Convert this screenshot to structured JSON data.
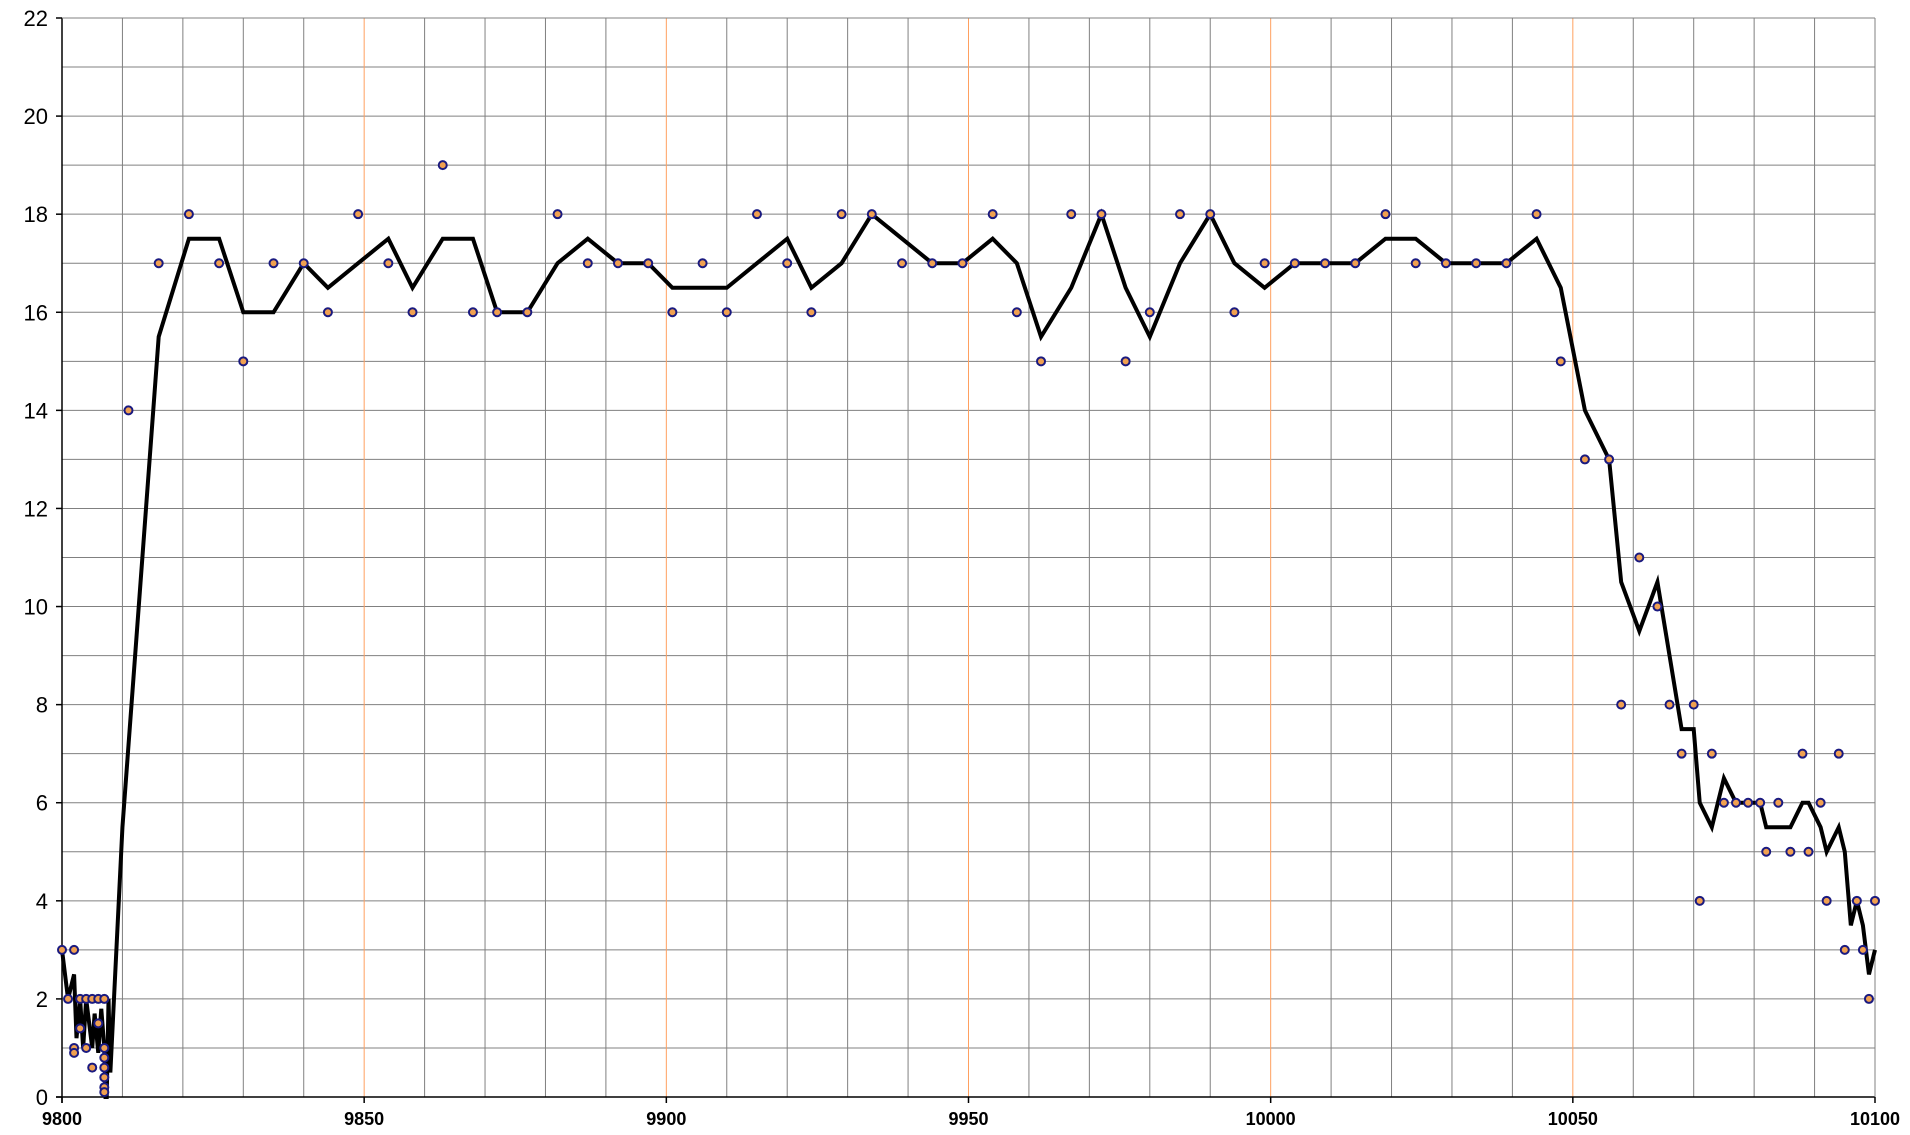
{
  "chart_data": {
    "type": "line",
    "title": "",
    "xlabel": "",
    "ylabel": "",
    "xlim": [
      9800,
      10100
    ],
    "ylim": [
      0,
      22
    ],
    "x_ticks": [
      9800,
      9850,
      9900,
      9950,
      10000,
      10050,
      10100
    ],
    "y_ticks": [
      0,
      2,
      4,
      6,
      8,
      10,
      12,
      14,
      16,
      18,
      20,
      22
    ],
    "x_minor_step": 10,
    "y_minor_step": 1,
    "grid": true,
    "legend": "none",
    "colors": {
      "background": "#ffffff",
      "grid": "#808080",
      "grid_major_x": "#ffa060",
      "axis": "#000000",
      "line": "#000000",
      "marker_fill": "#f0a050",
      "marker_edge": "#1a1a80"
    },
    "series": [
      {
        "kind": "scatter",
        "points": [
          [
            9800,
            3
          ],
          [
            9801,
            2
          ],
          [
            9802,
            3
          ],
          [
            9802,
            1
          ],
          [
            9802,
            0.9
          ],
          [
            9803,
            1.4
          ],
          [
            9803,
            2
          ],
          [
            9804,
            2
          ],
          [
            9804,
            1
          ],
          [
            9805,
            2
          ],
          [
            9805,
            0.6
          ],
          [
            9806,
            2
          ],
          [
            9806,
            1.5
          ],
          [
            9807,
            2
          ],
          [
            9807,
            1
          ],
          [
            9807,
            0.8
          ],
          [
            9807,
            0.6
          ],
          [
            9807,
            0.4
          ],
          [
            9807,
            0.2
          ],
          [
            9807,
            0.1
          ],
          [
            9811,
            14
          ],
          [
            9816,
            17
          ],
          [
            9821,
            18
          ],
          [
            9826,
            17
          ],
          [
            9830,
            15
          ],
          [
            9835,
            17
          ],
          [
            9840,
            17
          ],
          [
            9844,
            16
          ],
          [
            9849,
            18
          ],
          [
            9854,
            17
          ],
          [
            9858,
            16
          ],
          [
            9863,
            19
          ],
          [
            9868,
            16
          ],
          [
            9872,
            16
          ],
          [
            9877,
            16
          ],
          [
            9882,
            18
          ],
          [
            9887,
            17
          ],
          [
            9892,
            17
          ],
          [
            9897,
            17
          ],
          [
            9901,
            16
          ],
          [
            9906,
            17
          ],
          [
            9910,
            16
          ],
          [
            9915,
            18
          ],
          [
            9920,
            17
          ],
          [
            9924,
            16
          ],
          [
            9929,
            18
          ],
          [
            9934,
            18
          ],
          [
            9939,
            17
          ],
          [
            9944,
            17
          ],
          [
            9949,
            17
          ],
          [
            9954,
            18
          ],
          [
            9958,
            16
          ],
          [
            9962,
            15
          ],
          [
            9967,
            18
          ],
          [
            9972,
            18
          ],
          [
            9976,
            15
          ],
          [
            9980,
            16
          ],
          [
            9985,
            18
          ],
          [
            9990,
            18
          ],
          [
            9994,
            16
          ],
          [
            9999,
            17
          ],
          [
            10004,
            17
          ],
          [
            10009,
            17
          ],
          [
            10014,
            17
          ],
          [
            10019,
            18
          ],
          [
            10024,
            17
          ],
          [
            10029,
            17
          ],
          [
            10034,
            17
          ],
          [
            10039,
            17
          ],
          [
            10044,
            18
          ],
          [
            10048,
            15
          ],
          [
            10052,
            13
          ],
          [
            10056,
            13
          ],
          [
            10058,
            8
          ],
          [
            10061,
            11
          ],
          [
            10064,
            10
          ],
          [
            10066,
            8
          ],
          [
            10068,
            7
          ],
          [
            10070,
            8
          ],
          [
            10071,
            4
          ],
          [
            10073,
            7
          ],
          [
            10075,
            6
          ],
          [
            10077,
            6
          ],
          [
            10079,
            6
          ],
          [
            10081,
            6
          ],
          [
            10082,
            5
          ],
          [
            10084,
            6
          ],
          [
            10086,
            5
          ],
          [
            10088,
            7
          ],
          [
            10089,
            5
          ],
          [
            10091,
            6
          ],
          [
            10092,
            4
          ],
          [
            10094,
            7
          ],
          [
            10095,
            3
          ],
          [
            10097,
            4
          ],
          [
            10098,
            3
          ],
          [
            10099,
            2
          ],
          [
            10100,
            4
          ]
        ]
      },
      {
        "kind": "line",
        "points": [
          [
            9800,
            3
          ],
          [
            9801,
            2
          ],
          [
            9802,
            2.5
          ],
          [
            9802.4,
            1.2
          ],
          [
            9803,
            2
          ],
          [
            9803.5,
            1
          ],
          [
            9804,
            2
          ],
          [
            9805,
            1
          ],
          [
            9805.4,
            1.7
          ],
          [
            9806,
            0.9
          ],
          [
            9806.5,
            1.8
          ],
          [
            9807,
            1
          ],
          [
            9807.2,
            0
          ],
          [
            9807.4,
            0
          ],
          [
            9807.7,
            2
          ],
          [
            9808,
            0.5
          ],
          [
            9810,
            5.5
          ],
          [
            9816,
            15.5
          ],
          [
            9821,
            17.5
          ],
          [
            9826,
            17.5
          ],
          [
            9830,
            16
          ],
          [
            9835,
            16
          ],
          [
            9840,
            17
          ],
          [
            9844,
            16.5
          ],
          [
            9849,
            17
          ],
          [
            9854,
            17.5
          ],
          [
            9858,
            16.5
          ],
          [
            9863,
            17.5
          ],
          [
            9868,
            17.5
          ],
          [
            9872,
            16
          ],
          [
            9877,
            16
          ],
          [
            9882,
            17
          ],
          [
            9887,
            17.5
          ],
          [
            9892,
            17
          ],
          [
            9897,
            17
          ],
          [
            9901,
            16.5
          ],
          [
            9906,
            16.5
          ],
          [
            9910,
            16.5
          ],
          [
            9915,
            17
          ],
          [
            9920,
            17.5
          ],
          [
            9924,
            16.5
          ],
          [
            9929,
            17
          ],
          [
            9934,
            18
          ],
          [
            9939,
            17.5
          ],
          [
            9944,
            17
          ],
          [
            9949,
            17
          ],
          [
            9954,
            17.5
          ],
          [
            9958,
            17
          ],
          [
            9962,
            15.5
          ],
          [
            9967,
            16.5
          ],
          [
            9972,
            18
          ],
          [
            9976,
            16.5
          ],
          [
            9980,
            15.5
          ],
          [
            9985,
            17
          ],
          [
            9990,
            18
          ],
          [
            9994,
            17
          ],
          [
            9999,
            16.5
          ],
          [
            10004,
            17
          ],
          [
            10009,
            17
          ],
          [
            10014,
            17
          ],
          [
            10019,
            17.5
          ],
          [
            10024,
            17.5
          ],
          [
            10029,
            17
          ],
          [
            10034,
            17
          ],
          [
            10039,
            17
          ],
          [
            10044,
            17.5
          ],
          [
            10048,
            16.5
          ],
          [
            10052,
            14
          ],
          [
            10056,
            13
          ],
          [
            10058,
            10.5
          ],
          [
            10061,
            9.5
          ],
          [
            10064,
            10.5
          ],
          [
            10066,
            9
          ],
          [
            10068,
            7.5
          ],
          [
            10070,
            7.5
          ],
          [
            10071,
            6
          ],
          [
            10073,
            5.5
          ],
          [
            10075,
            6.5
          ],
          [
            10077,
            6
          ],
          [
            10079,
            6
          ],
          [
            10081,
            6
          ],
          [
            10082,
            5.5
          ],
          [
            10084,
            5.5
          ],
          [
            10086,
            5.5
          ],
          [
            10088,
            6
          ],
          [
            10089,
            6
          ],
          [
            10091,
            5.5
          ],
          [
            10092,
            5
          ],
          [
            10094,
            5.5
          ],
          [
            10095,
            5
          ],
          [
            10096,
            3.5
          ],
          [
            10097,
            4
          ],
          [
            10098,
            3.5
          ],
          [
            10099,
            2.5
          ],
          [
            10100,
            3
          ]
        ]
      }
    ]
  }
}
